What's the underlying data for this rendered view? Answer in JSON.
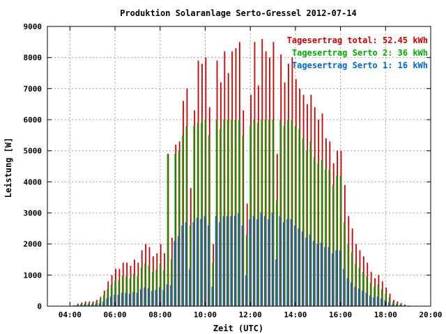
{
  "chart_data": {
    "type": "bar",
    "title": "Produktion Solaranlage Serto-Gressel 2012-07-14",
    "xlabel": "Zeit (UTC)",
    "ylabel": "Leistung [W]",
    "xlim": [
      "03:00",
      "20:00"
    ],
    "ylim": [
      0,
      9000
    ],
    "x_ticks": [
      "04:00",
      "06:00",
      "08:00",
      "10:00",
      "12:00",
      "14:00",
      "16:00",
      "18:00",
      "20:00"
    ],
    "y_ticks": [
      "0",
      "1000",
      "2000",
      "3000",
      "4000",
      "5000",
      "6000",
      "7000",
      "8000",
      "9000"
    ],
    "grid": true,
    "legend_position": "top-right",
    "interval_minutes": 10,
    "x": [
      "04:00",
      "04:10",
      "04:20",
      "04:30",
      "04:40",
      "04:50",
      "05:00",
      "05:10",
      "05:20",
      "05:30",
      "05:40",
      "05:50",
      "06:00",
      "06:10",
      "06:20",
      "06:30",
      "06:40",
      "06:50",
      "07:00",
      "07:10",
      "07:20",
      "07:30",
      "07:40",
      "07:50",
      "08:00",
      "08:10",
      "08:20",
      "08:30",
      "08:40",
      "08:50",
      "09:00",
      "09:10",
      "09:20",
      "09:30",
      "09:40",
      "09:50",
      "10:00",
      "10:10",
      "10:20",
      "10:30",
      "10:40",
      "10:50",
      "11:00",
      "11:10",
      "11:20",
      "11:30",
      "11:40",
      "11:50",
      "12:00",
      "12:10",
      "12:20",
      "12:30",
      "12:40",
      "12:50",
      "13:00",
      "13:10",
      "13:20",
      "13:30",
      "13:40",
      "13:50",
      "14:00",
      "14:10",
      "14:20",
      "14:30",
      "14:40",
      "14:50",
      "15:00",
      "15:10",
      "15:20",
      "15:30",
      "15:40",
      "15:50",
      "16:00",
      "16:10",
      "16:20",
      "16:30",
      "16:40",
      "16:50",
      "17:00",
      "17:10",
      "17:20",
      "17:30",
      "17:40",
      "17:50",
      "18:00",
      "18:10",
      "18:20",
      "18:30",
      "18:40",
      "18:50",
      "19:00"
    ],
    "series": [
      {
        "name": "Tagesertrag total: 52.45 kWh",
        "color": "#cc0000",
        "values": [
          0,
          30,
          80,
          120,
          150,
          150,
          150,
          200,
          300,
          500,
          800,
          1000,
          1200,
          1200,
          1400,
          1400,
          1300,
          1500,
          1400,
          1800,
          2000,
          1900,
          1600,
          1700,
          2000,
          1700,
          4900,
          2200,
          5200,
          5300,
          6600,
          7000,
          3800,
          6300,
          7900,
          7800,
          8000,
          6400,
          2000,
          7900,
          7200,
          8200,
          7500,
          8200,
          8300,
          8500,
          6300,
          3300,
          6800,
          8500,
          7100,
          8600,
          8200,
          8000,
          8500,
          4900,
          8100,
          7200,
          7800,
          8000,
          7300,
          7000,
          6800,
          6500,
          6800,
          6400,
          6000,
          6200,
          5400,
          5300,
          4600,
          5000,
          5000,
          3900,
          2900,
          2500,
          2000,
          1800,
          1600,
          1400,
          1100,
          900,
          1000,
          800,
          600,
          400,
          200,
          150,
          100,
          50,
          20
        ]
      },
      {
        "name": "Tagesertrag Serto 2: 36 kWh",
        "color": "#00aa00",
        "values": [
          0,
          20,
          55,
          80,
          100,
          100,
          100,
          140,
          210,
          350,
          550,
          690,
          830,
          830,
          970,
          970,
          900,
          1040,
          970,
          1240,
          1380,
          1310,
          1100,
          1170,
          1380,
          1170,
          4900,
          1520,
          4900,
          5000,
          5500,
          5800,
          2600,
          5800,
          5900,
          5900,
          6000,
          5500,
          1400,
          6000,
          5700,
          6000,
          6000,
          6000,
          6000,
          6000,
          5500,
          2300,
          5800,
          6000,
          5900,
          6000,
          6000,
          6000,
          6000,
          3400,
          6000,
          5800,
          6000,
          6000,
          5800,
          5700,
          5400,
          5000,
          5300,
          4800,
          4600,
          4700,
          4400,
          4400,
          3900,
          4200,
          4200,
          2700,
          2000,
          1730,
          1380,
          1240,
          1100,
          970,
          760,
          620,
          690,
          550,
          410,
          280,
          140,
          100,
          70,
          35,
          14
        ]
      },
      {
        "name": "Tagesertrag Serto 1: 16 kWh",
        "color": "#0066cc",
        "values": [
          0,
          10,
          25,
          40,
          50,
          50,
          50,
          60,
          90,
          150,
          250,
          310,
          370,
          370,
          430,
          430,
          400,
          460,
          430,
          550,
          610,
          580,
          490,
          520,
          610,
          520,
          700,
          680,
          2100,
          2250,
          2600,
          2700,
          1200,
          2700,
          2850,
          2800,
          2900,
          2600,
          620,
          2900,
          2700,
          2900,
          2900,
          2900,
          2900,
          3000,
          2600,
          1000,
          2800,
          2900,
          2800,
          3000,
          2900,
          2800,
          3000,
          1500,
          2900,
          2700,
          2800,
          2800,
          2600,
          2500,
          2400,
          2200,
          2300,
          2100,
          2000,
          2050,
          1900,
          1900,
          1700,
          1800,
          1800,
          1200,
          900,
          770,
          620,
          560,
          500,
          430,
          340,
          280,
          310,
          250,
          190,
          120,
          60,
          45,
          30,
          15,
          6
        ]
      }
    ]
  }
}
